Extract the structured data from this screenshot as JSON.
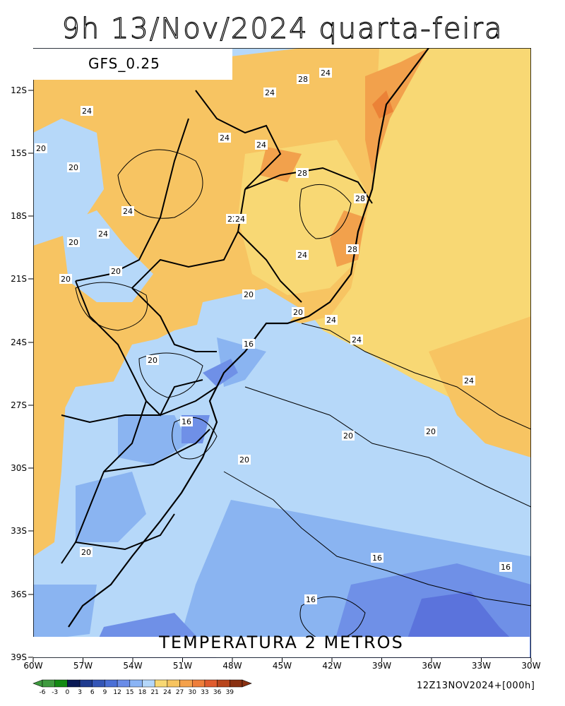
{
  "title": "9h 13/Nov/2024 quarta-feira",
  "model_label": "GFS_0.25",
  "variable_label": "TEMPERATURA 2 METROS",
  "run_label": "12Z13NOV2024+[000h]",
  "lat_ticks": [
    "12S",
    "15S",
    "18S",
    "21S",
    "24S",
    "27S",
    "30S",
    "33S",
    "36S",
    "39S"
  ],
  "lon_ticks": [
    "60W",
    "57W",
    "54W",
    "51W",
    "48W",
    "45W",
    "42W",
    "39W",
    "36W",
    "33W",
    "30W"
  ],
  "colorbar": {
    "labels": [
      "-6",
      "-3",
      "0",
      "3",
      "6",
      "9",
      "12",
      "15",
      "18",
      "21",
      "24",
      "27",
      "30",
      "33",
      "36",
      "39"
    ],
    "colors": [
      "#3e9a3e",
      "#138a13",
      "#0a1a55",
      "#1f3b8f",
      "#3355b6",
      "#4a6fd6",
      "#6a8ce8",
      "#8ab4f5",
      "#b4d7fa",
      "#f8d874",
      "#f7c45f",
      "#f4a14b",
      "#ee7e3a",
      "#e05c2e",
      "#b8451c",
      "#8a3112"
    ]
  },
  "contour_labels": [
    "24",
    "28",
    "24",
    "24",
    "24",
    "24",
    "20",
    "20",
    "28",
    "28",
    "24",
    "22",
    "24",
    "24",
    "24",
    "20",
    "28",
    "20",
    "24",
    "20",
    "20",
    "16",
    "20",
    "24",
    "20",
    "24",
    "16",
    "20",
    "20",
    "20",
    "16",
    "16",
    "16",
    "20"
  ],
  "colors": {
    "ocean_warm": "#f7d671",
    "land_warm": "#f7c462",
    "hot": "#f2a14c",
    "hotter": "#eb8237",
    "cool": "#b2d5f8",
    "cooler": "#8ab4f1",
    "cold": "#6f90e7",
    "colder": "#5b73dc"
  }
}
